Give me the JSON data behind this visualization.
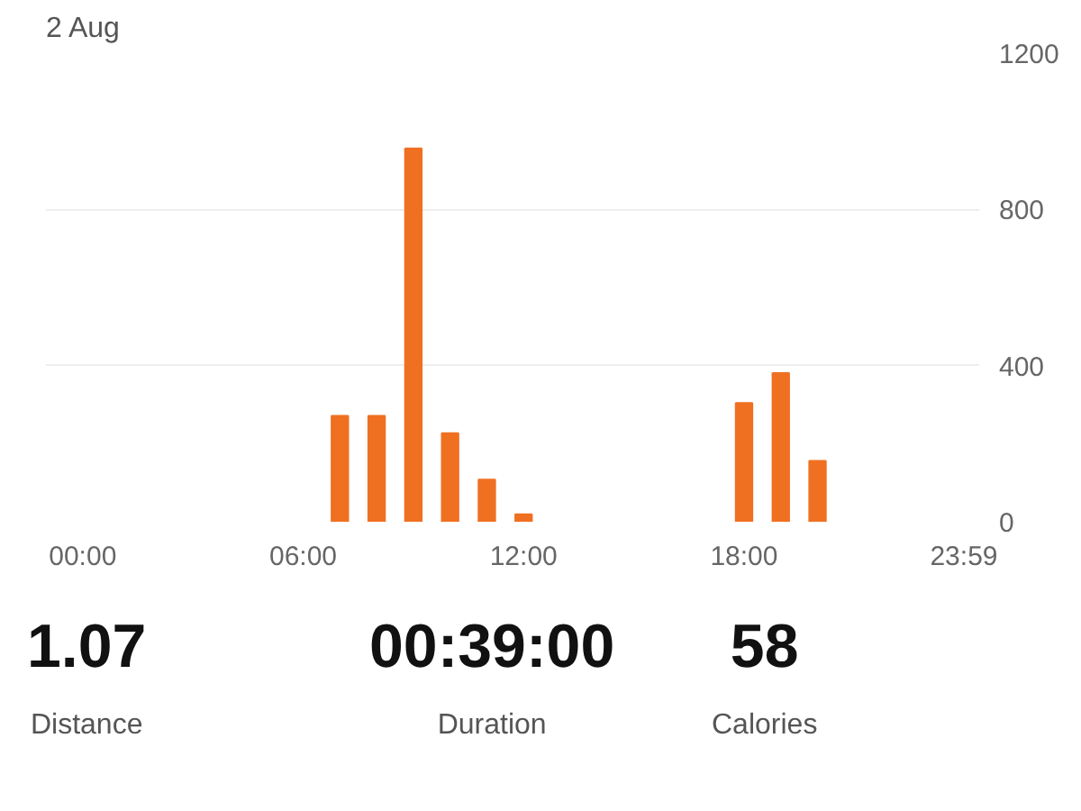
{
  "chart_data": {
    "type": "bar",
    "title": "2 Aug",
    "x": [
      7,
      8,
      9,
      10,
      11,
      12,
      18,
      19,
      20
    ],
    "values": [
      271,
      271,
      956,
      227,
      108,
      19,
      304,
      381,
      156
    ],
    "color": "#f07021",
    "xlim": [
      -1,
      24.4
    ],
    "xticks": [
      {
        "value": 0,
        "label": "00:00"
      },
      {
        "value": 6,
        "label": "06:00"
      },
      {
        "value": 12,
        "label": "12:00"
      },
      {
        "value": 18,
        "label": "18:00"
      },
      {
        "value": 23.983,
        "label": "23:59"
      }
    ],
    "ylim": [
      0,
      1200
    ],
    "yticks": [
      0,
      400,
      800,
      1200
    ],
    "grid": "y",
    "annotations": [
      "1.07",
      "Distance",
      "00:39:00",
      "Duration",
      "58",
      "Calories"
    ]
  }
}
